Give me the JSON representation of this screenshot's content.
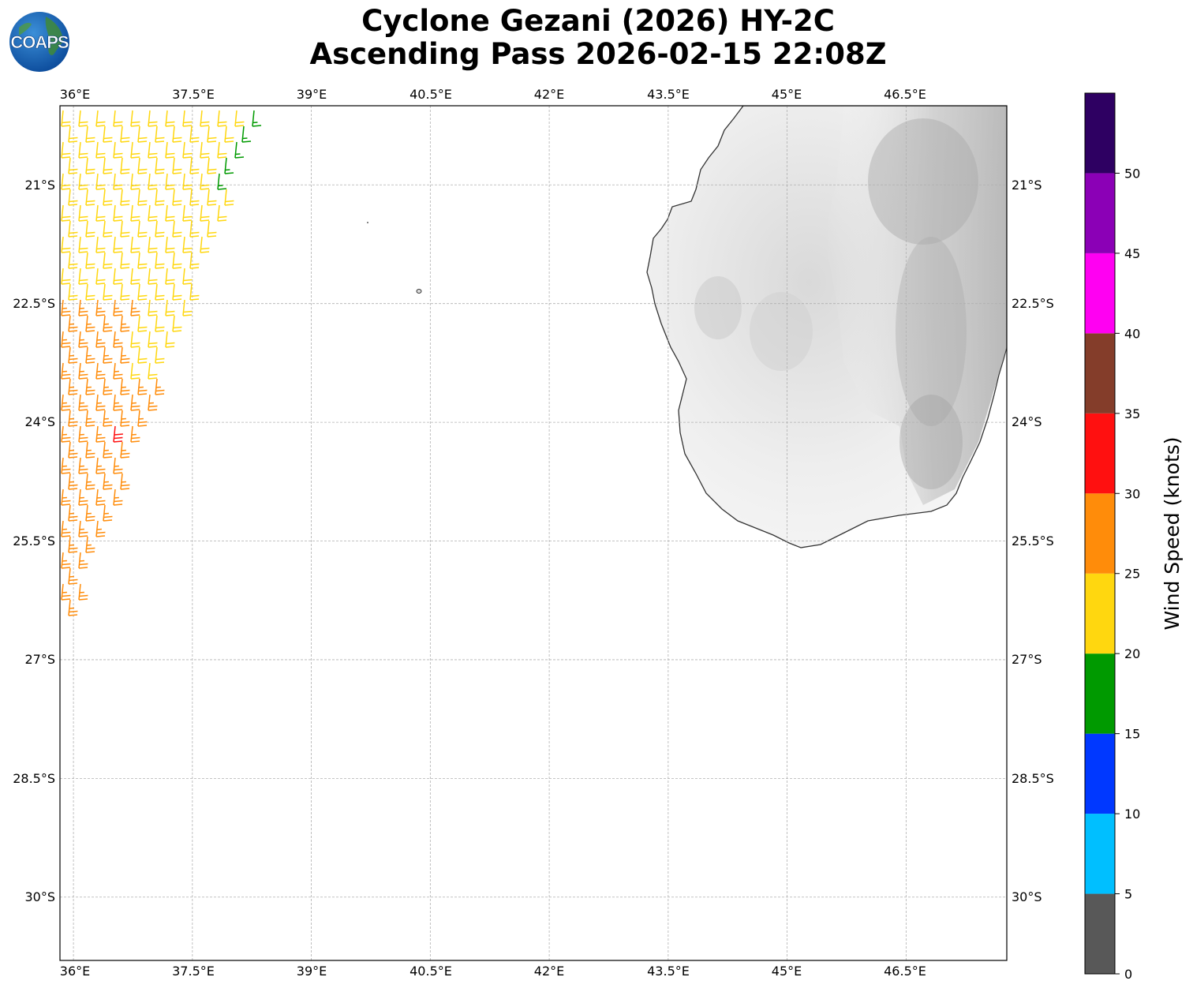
{
  "title": {
    "line1": "Cyclone Gezani (2026) HY-2C",
    "line2": "Ascending Pass 2026-02-15 22:08Z"
  },
  "logo": {
    "text": "COAPS",
    "icon": "globe-icon"
  },
  "map": {
    "lon_range": [
      35.83,
      47.77
    ],
    "lat_range": [
      -30.8,
      -20.0
    ],
    "lon_ticks": [
      "36°E",
      "37.5°E",
      "39°E",
      "40.5°E",
      "42°E",
      "43.5°E",
      "45°E",
      "46.5°E"
    ],
    "lat_ticks": [
      "21°S",
      "22.5°S",
      "24°S",
      "25.5°S",
      "27°S",
      "28.5°S",
      "30°S"
    ],
    "gridlines": true,
    "land": "Madagascar (southern), shaded terrain"
  },
  "colorbar": {
    "label": "Wind Speed (knots)",
    "tick_labels": [
      "0",
      "5",
      "10",
      "15",
      "20",
      "25",
      "30",
      "35",
      "40",
      "45",
      "50"
    ],
    "bins": [
      {
        "range": [
          0,
          5
        ],
        "color": "#585858"
      },
      {
        "range": [
          5,
          10
        ],
        "color": "#00bfff"
      },
      {
        "range": [
          10,
          15
        ],
        "color": "#0038ff"
      },
      {
        "range": [
          15,
          20
        ],
        "color": "#009a00"
      },
      {
        "range": [
          20,
          25
        ],
        "color": "#ffd70f"
      },
      {
        "range": [
          25,
          30
        ],
        "color": "#ff8c0a"
      },
      {
        "range": [
          30,
          35
        ],
        "color": "#ff1010"
      },
      {
        "range": [
          35,
          40
        ],
        "color": "#843d2a"
      },
      {
        "range": [
          40,
          45
        ],
        "color": "#ff00f2"
      },
      {
        "range": [
          45,
          50
        ],
        "color": "#8b00b6"
      },
      {
        "range": [
          50,
          55
        ],
        "color": "#2e0062"
      }
    ]
  },
  "wind_barbs": {
    "description": "HY-2C swath wind barbs along western edge",
    "dominant_speeds_knots": {
      "north": 22,
      "middle": 22,
      "south": 27,
      "max": 32
    }
  }
}
